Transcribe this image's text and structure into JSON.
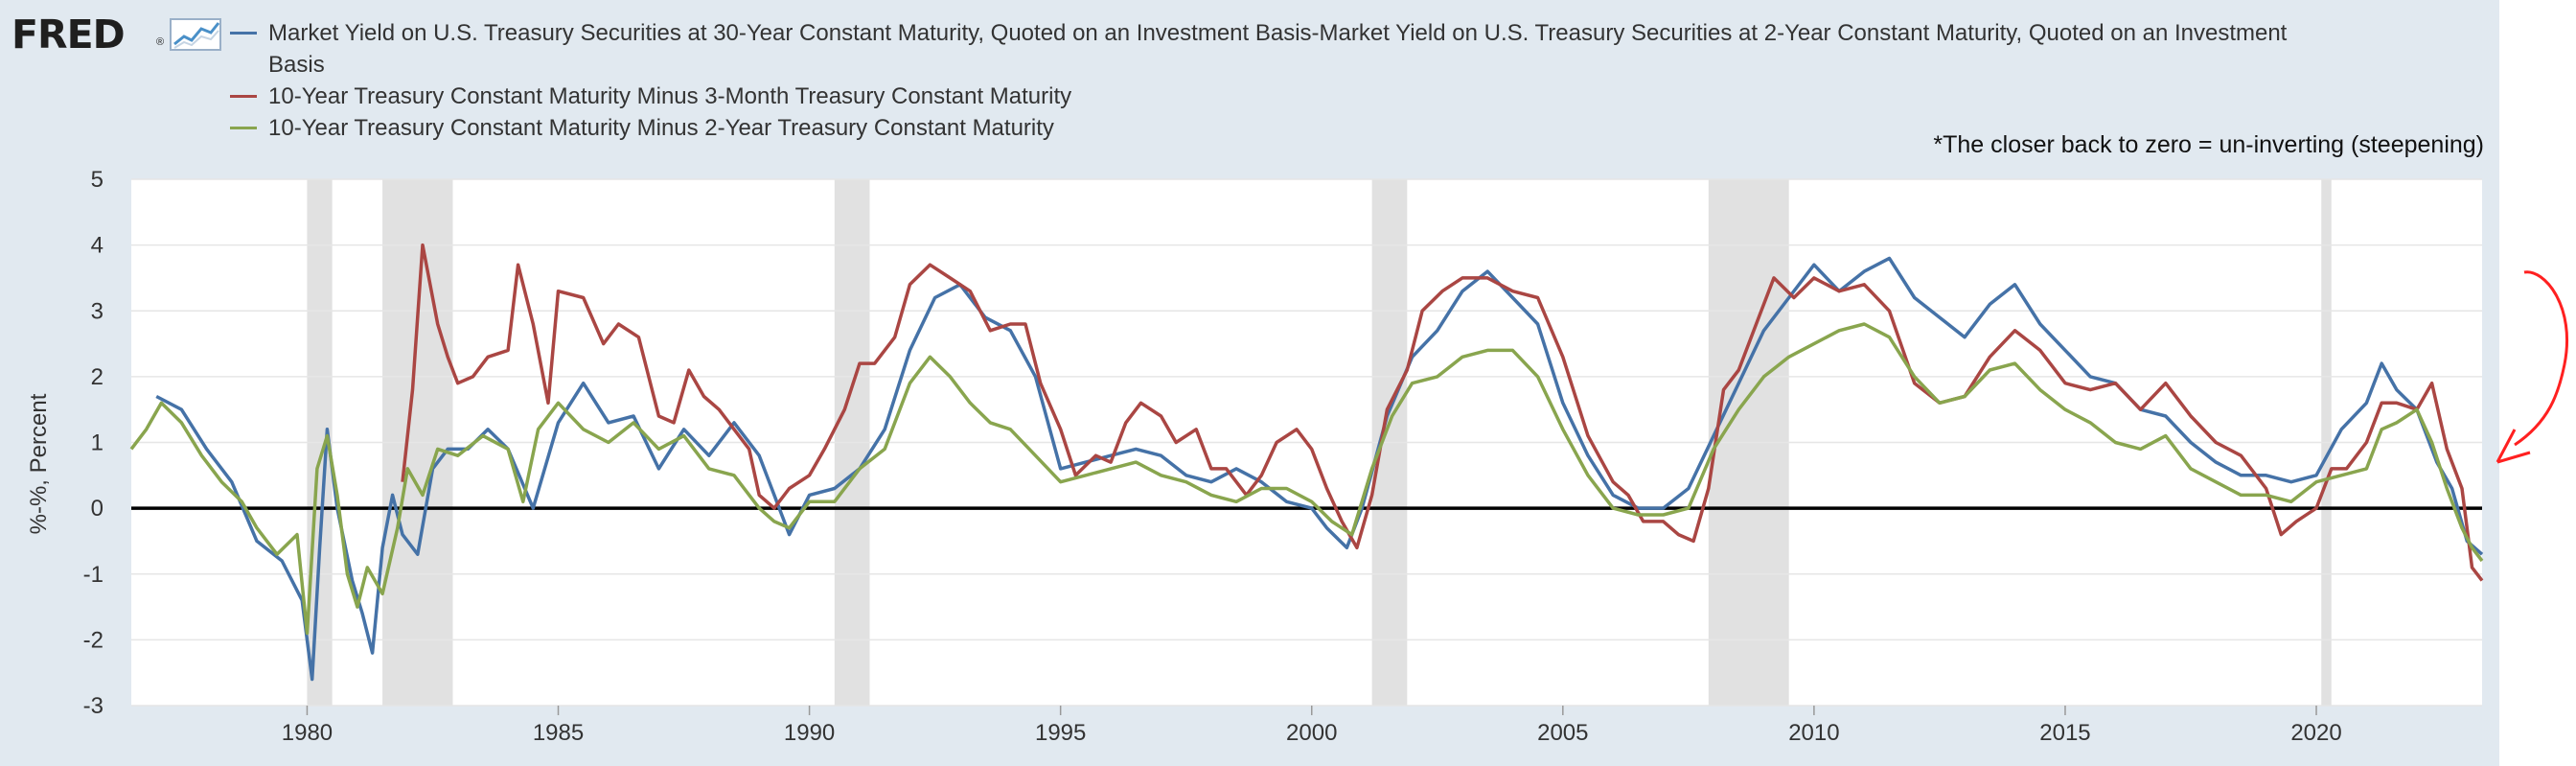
{
  "app": {
    "logo": "FRED",
    "logo_mark": "®"
  },
  "annotation": "*The closer back to zero = un-inverting (steepening)",
  "colors": {
    "series_blue": "#4572a7",
    "series_red": "#aa4643",
    "series_green": "#89a54e",
    "recession": "#e1e1e1",
    "arrow": "#ff2020"
  },
  "icons": {
    "logo_chart": "line-chart-icon",
    "arrow": "curved-arrow-icon"
  },
  "chart_data": {
    "type": "line",
    "title": "",
    "xlabel": "",
    "ylabel": "%-%, Percent",
    "xlim": [
      1976.5,
      2023.3
    ],
    "ylim": [
      -3,
      5
    ],
    "yticks": [
      -3,
      -2,
      -1,
      0,
      1,
      2,
      3,
      4,
      5
    ],
    "xticks": [
      1980,
      1985,
      1990,
      1995,
      2000,
      2005,
      2010,
      2015,
      2020
    ],
    "grid": true,
    "legend": "top-left",
    "zero_line": true,
    "recessions": [
      [
        1980.0,
        1980.5
      ],
      [
        1981.5,
        1982.9
      ],
      [
        1990.5,
        1991.2
      ],
      [
        2001.2,
        2001.9
      ],
      [
        2007.9,
        2009.5
      ],
      [
        2020.1,
        2020.3
      ]
    ],
    "series": [
      {
        "name": "Market Yield on U.S. Treasury Securities at 30-Year Constant Maturity, Quoted on an Investment Basis-Market Yield on U.S. Treasury Securities at 2-Year Constant Maturity, Quoted on an Investment Basis",
        "color": "#4572a7",
        "x": [
          1977.0,
          1977.5,
          1978.0,
          1978.5,
          1979.0,
          1979.5,
          1979.9,
          1980.1,
          1980.25,
          1980.4,
          1980.6,
          1980.9,
          1981.1,
          1981.3,
          1981.5,
          1981.7,
          1981.9,
          1982.2,
          1982.5,
          1982.8,
          1983.2,
          1983.6,
          1984.0,
          1984.5,
          1985.0,
          1985.5,
          1986.0,
          1986.5,
          1987.0,
          1987.5,
          1988.0,
          1988.5,
          1989.0,
          1989.3,
          1989.6,
          1990.0,
          1990.5,
          1991.0,
          1991.5,
          1992.0,
          1992.5,
          1993.0,
          1993.5,
          1994.0,
          1994.5,
          1995.0,
          1995.5,
          1996.0,
          1996.5,
          1997.0,
          1997.5,
          1998.0,
          1998.5,
          1999.0,
          1999.5,
          2000.0,
          2000.3,
          2000.7,
          2001.0,
          2001.5,
          2002.0,
          2002.5,
          2003.0,
          2003.5,
          2004.0,
          2004.5,
          2005.0,
          2005.5,
          2006.0,
          2006.5,
          2007.0,
          2007.5,
          2008.0,
          2008.5,
          2009.0,
          2009.5,
          2010.0,
          2010.5,
          2011.0,
          2011.5,
          2012.0,
          2012.5,
          2013.0,
          2013.5,
          2014.0,
          2014.5,
          2015.0,
          2015.5,
          2016.0,
          2016.5,
          2017.0,
          2017.5,
          2018.0,
          2018.5,
          2019.0,
          2019.5,
          2020.0,
          2020.5,
          2021.0,
          2021.3,
          2021.6,
          2022.0,
          2022.4,
          2022.7,
          2023.0,
          2023.3
        ],
        "y": [
          1.7,
          1.5,
          0.9,
          0.4,
          -0.5,
          -0.8,
          -1.4,
          -2.6,
          -0.6,
          1.2,
          0.0,
          -1.1,
          -1.6,
          -2.2,
          -0.6,
          0.2,
          -0.4,
          -0.7,
          0.6,
          0.9,
          0.9,
          1.2,
          0.9,
          0.0,
          1.3,
          1.9,
          1.3,
          1.4,
          0.6,
          1.2,
          0.8,
          1.3,
          0.8,
          0.2,
          -0.4,
          0.2,
          0.3,
          0.6,
          1.2,
          2.4,
          3.2,
          3.4,
          2.9,
          2.7,
          2.0,
          0.6,
          0.7,
          0.8,
          0.9,
          0.8,
          0.5,
          0.4,
          0.6,
          0.4,
          0.1,
          0.0,
          -0.3,
          -0.6,
          0.0,
          1.4,
          2.3,
          2.7,
          3.3,
          3.6,
          3.2,
          2.8,
          1.6,
          0.8,
          0.2,
          0.0,
          0.0,
          0.3,
          1.1,
          1.9,
          2.7,
          3.2,
          3.7,
          3.3,
          3.6,
          3.8,
          3.2,
          2.9,
          2.6,
          3.1,
          3.4,
          2.8,
          2.4,
          2.0,
          1.9,
          1.5,
          1.4,
          1.0,
          0.7,
          0.5,
          0.5,
          0.4,
          0.5,
          1.2,
          1.6,
          2.2,
          1.8,
          1.5,
          0.7,
          0.3,
          -0.5,
          -0.7
        ]
      },
      {
        "name": "10-Year Treasury Constant Maturity Minus 3-Month Treasury Constant Maturity",
        "color": "#aa4643",
        "x": [
          1981.9,
          1982.1,
          1982.3,
          1982.6,
          1982.8,
          1983.0,
          1983.3,
          1983.6,
          1984.0,
          1984.2,
          1984.5,
          1984.8,
          1985.0,
          1985.5,
          1985.9,
          1986.2,
          1986.6,
          1987.0,
          1987.3,
          1987.6,
          1987.9,
          1988.2,
          1988.5,
          1988.8,
          1989.0,
          1989.3,
          1989.6,
          1990.0,
          1990.3,
          1990.7,
          1991.0,
          1991.3,
          1991.7,
          1992.0,
          1992.4,
          1992.8,
          1993.2,
          1993.6,
          1994.0,
          1994.3,
          1994.6,
          1995.0,
          1995.3,
          1995.7,
          1996.0,
          1996.3,
          1996.6,
          1997.0,
          1997.3,
          1997.7,
          1998.0,
          1998.3,
          1998.7,
          1999.0,
          1999.3,
          1999.7,
          2000.0,
          2000.3,
          2000.6,
          2000.9,
          2001.2,
          2001.5,
          2001.9,
          2002.2,
          2002.6,
          2003.0,
          2003.5,
          2004.0,
          2004.5,
          2005.0,
          2005.5,
          2006.0,
          2006.3,
          2006.6,
          2007.0,
          2007.3,
          2007.6,
          2007.9,
          2008.2,
          2008.5,
          2008.9,
          2009.2,
          2009.6,
          2010.0,
          2010.5,
          2011.0,
          2011.5,
          2012.0,
          2012.5,
          2013.0,
          2013.5,
          2014.0,
          2014.5,
          2015.0,
          2015.5,
          2016.0,
          2016.5,
          2017.0,
          2017.5,
          2018.0,
          2018.5,
          2019.0,
          2019.3,
          2019.6,
          2020.0,
          2020.3,
          2020.6,
          2021.0,
          2021.3,
          2021.6,
          2022.0,
          2022.3,
          2022.6,
          2022.9,
          2023.1,
          2023.3
        ],
        "y": [
          0.4,
          1.8,
          4.0,
          2.8,
          2.3,
          1.9,
          2.0,
          2.3,
          2.4,
          3.7,
          2.8,
          1.6,
          3.3,
          3.2,
          2.5,
          2.8,
          2.6,
          1.4,
          1.3,
          2.1,
          1.7,
          1.5,
          1.2,
          0.9,
          0.2,
          0.0,
          0.3,
          0.5,
          0.9,
          1.5,
          2.2,
          2.2,
          2.6,
          3.4,
          3.7,
          3.5,
          3.3,
          2.7,
          2.8,
          2.8,
          1.9,
          1.2,
          0.5,
          0.8,
          0.7,
          1.3,
          1.6,
          1.4,
          1.0,
          1.2,
          0.6,
          0.6,
          0.2,
          0.5,
          1.0,
          1.2,
          0.9,
          0.3,
          -0.2,
          -0.6,
          0.2,
          1.5,
          2.1,
          3.0,
          3.3,
          3.5,
          3.5,
          3.3,
          3.2,
          2.3,
          1.1,
          0.4,
          0.2,
          -0.2,
          -0.2,
          -0.4,
          -0.5,
          0.3,
          1.8,
          2.1,
          2.9,
          3.5,
          3.2,
          3.5,
          3.3,
          3.4,
          3.0,
          1.9,
          1.6,
          1.7,
          2.3,
          2.7,
          2.4,
          1.9,
          1.8,
          1.9,
          1.5,
          1.9,
          1.4,
          1.0,
          0.8,
          0.3,
          -0.4,
          -0.2,
          0.0,
          0.6,
          0.6,
          1.0,
          1.6,
          1.6,
          1.5,
          1.9,
          0.9,
          0.3,
          -0.9,
          -1.1
        ]
      },
      {
        "name": "10-Year Treasury Constant Maturity Minus 2-Year Treasury Constant Maturity",
        "color": "#89a54e",
        "x": [
          1976.5,
          1976.8,
          1977.1,
          1977.5,
          1977.9,
          1978.3,
          1978.7,
          1979.0,
          1979.4,
          1979.8,
          1980.0,
          1980.2,
          1980.4,
          1980.6,
          1980.8,
          1981.0,
          1981.2,
          1981.5,
          1981.8,
          1982.0,
          1982.3,
          1982.6,
          1983.0,
          1983.5,
          1984.0,
          1984.3,
          1984.6,
          1985.0,
          1985.5,
          1986.0,
          1986.5,
          1987.0,
          1987.5,
          1988.0,
          1988.5,
          1989.0,
          1989.3,
          1989.6,
          1990.0,
          1990.5,
          1991.0,
          1991.5,
          1992.0,
          1992.4,
          1992.8,
          1993.2,
          1993.6,
          1994.0,
          1994.5,
          1995.0,
          1995.5,
          1996.0,
          1996.5,
          1997.0,
          1997.5,
          1998.0,
          1998.5,
          1999.0,
          1999.5,
          2000.0,
          2000.4,
          2000.8,
          2001.2,
          2001.6,
          2002.0,
          2002.5,
          2003.0,
          2003.5,
          2004.0,
          2004.5,
          2005.0,
          2005.5,
          2006.0,
          2006.5,
          2007.0,
          2007.5,
          2008.0,
          2008.5,
          2009.0,
          2009.5,
          2010.0,
          2010.5,
          2011.0,
          2011.5,
          2012.0,
          2012.5,
          2013.0,
          2013.5,
          2014.0,
          2014.5,
          2015.0,
          2015.5,
          2016.0,
          2016.5,
          2017.0,
          2017.5,
          2018.0,
          2018.5,
          2019.0,
          2019.5,
          2020.0,
          2020.5,
          2021.0,
          2021.3,
          2021.6,
          2022.0,
          2022.3,
          2022.6,
          2022.9,
          2023.1,
          2023.3
        ],
        "y": [
          0.9,
          1.2,
          1.6,
          1.3,
          0.8,
          0.4,
          0.1,
          -0.3,
          -0.7,
          -0.4,
          -1.9,
          0.6,
          1.1,
          0.2,
          -1.0,
          -1.5,
          -0.9,
          -1.3,
          -0.3,
          0.6,
          0.2,
          0.9,
          0.8,
          1.1,
          0.9,
          0.1,
          1.2,
          1.6,
          1.2,
          1.0,
          1.3,
          0.9,
          1.1,
          0.6,
          0.5,
          0.0,
          -0.2,
          -0.3,
          0.1,
          0.1,
          0.6,
          0.9,
          1.9,
          2.3,
          2.0,
          1.6,
          1.3,
          1.2,
          0.8,
          0.4,
          0.5,
          0.6,
          0.7,
          0.5,
          0.4,
          0.2,
          0.1,
          0.3,
          0.3,
          0.1,
          -0.2,
          -0.4,
          0.6,
          1.4,
          1.9,
          2.0,
          2.3,
          2.4,
          2.4,
          2.0,
          1.2,
          0.5,
          0.0,
          -0.1,
          -0.1,
          0.0,
          0.9,
          1.5,
          2.0,
          2.3,
          2.5,
          2.7,
          2.8,
          2.6,
          2.0,
          1.6,
          1.7,
          2.1,
          2.2,
          1.8,
          1.5,
          1.3,
          1.0,
          0.9,
          1.1,
          0.6,
          0.4,
          0.2,
          0.2,
          0.1,
          0.4,
          0.5,
          0.6,
          1.2,
          1.3,
          1.5,
          1.0,
          0.3,
          -0.3,
          -0.6,
          -0.8
        ]
      }
    ]
  }
}
